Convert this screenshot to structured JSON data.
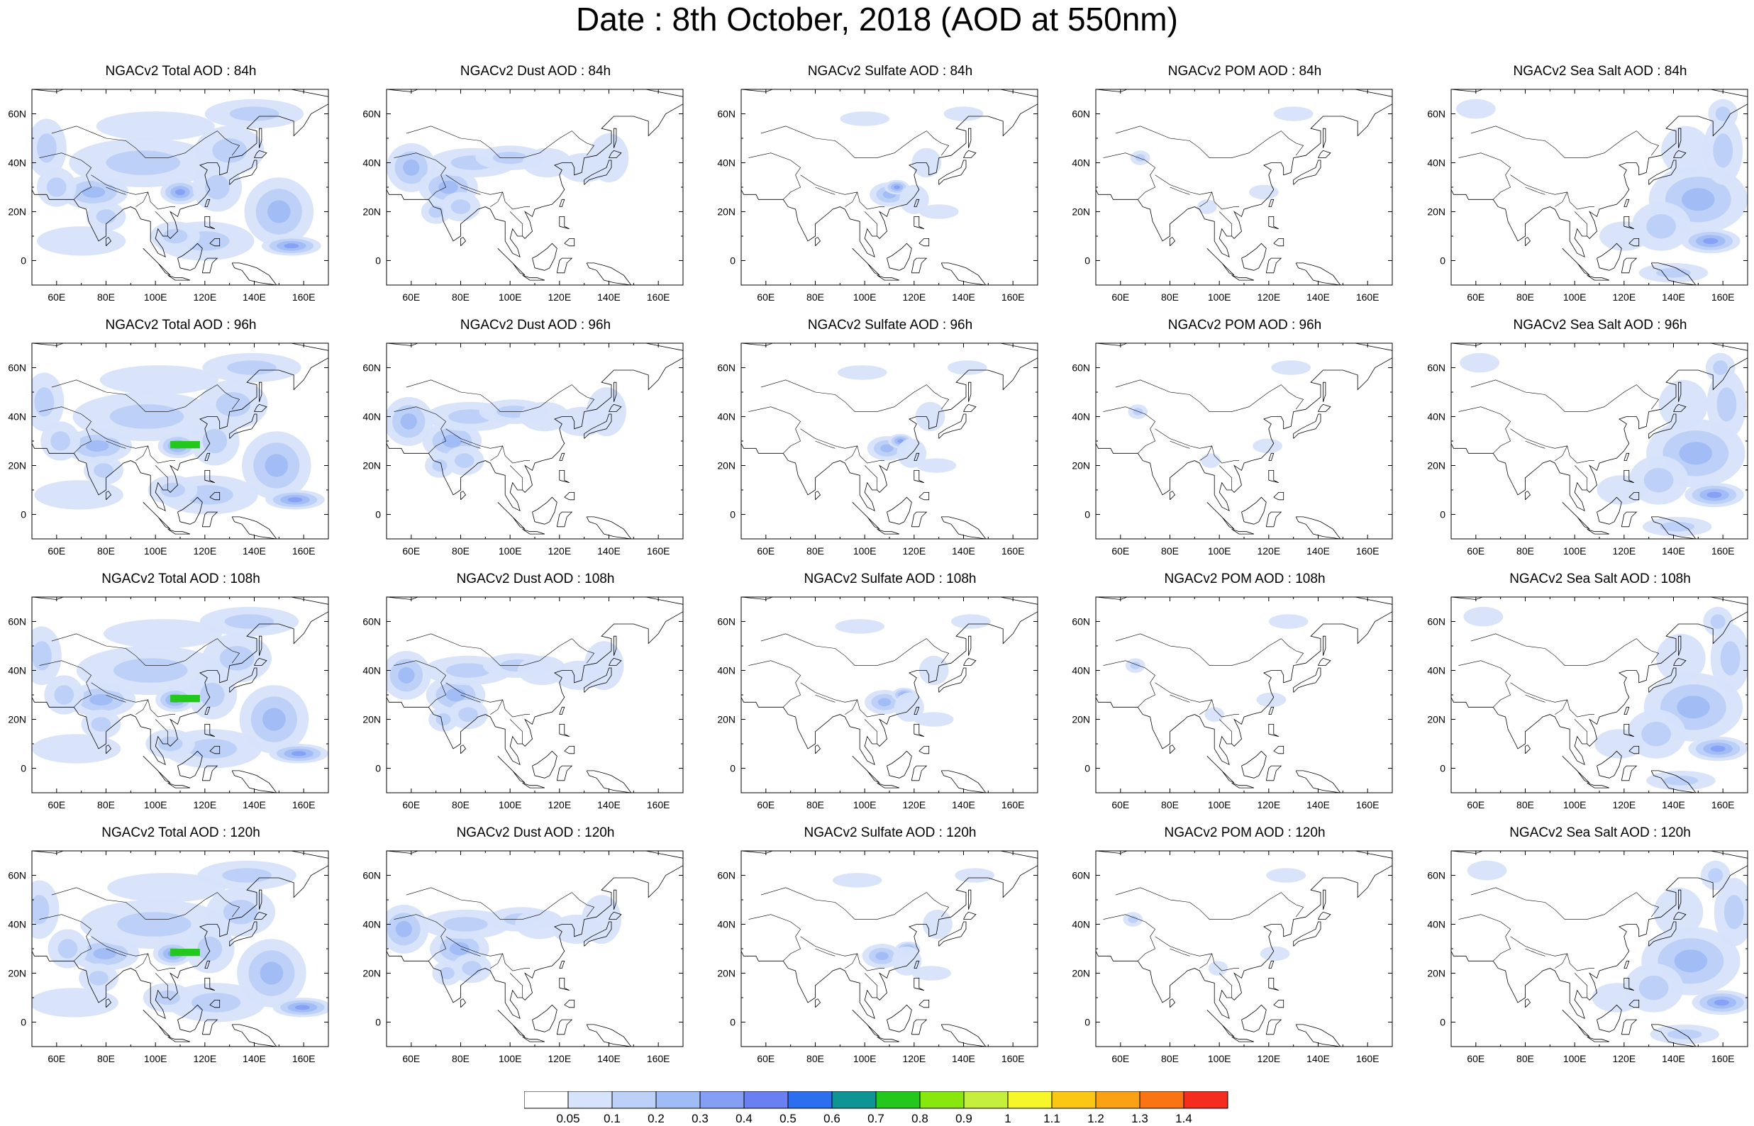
{
  "title": "Date : 8th October, 2018 (AOD at 550nm)",
  "panels": [
    {
      "title": "NGACv2 Total AOD : 84h",
      "species": "total",
      "hour": 84
    },
    {
      "title": "NGACv2 Dust AOD : 84h",
      "species": "dust",
      "hour": 84
    },
    {
      "title": "NGACv2 Sulfate AOD : 84h",
      "species": "sulfate",
      "hour": 84
    },
    {
      "title": "NGACv2 POM AOD : 84h",
      "species": "pom",
      "hour": 84
    },
    {
      "title": "NGACv2 Sea Salt AOD : 84h",
      "species": "seasalt",
      "hour": 84
    },
    {
      "title": "NGACv2 Total AOD : 96h",
      "species": "total",
      "hour": 96
    },
    {
      "title": "NGACv2 Dust AOD : 96h",
      "species": "dust",
      "hour": 96
    },
    {
      "title": "NGACv2 Sulfate AOD : 96h",
      "species": "sulfate",
      "hour": 96
    },
    {
      "title": "NGACv2 POM AOD : 96h",
      "species": "pom",
      "hour": 96
    },
    {
      "title": "NGACv2 Sea Salt AOD : 96h",
      "species": "seasalt",
      "hour": 96
    },
    {
      "title": "NGACv2 Total AOD : 108h",
      "species": "total",
      "hour": 108
    },
    {
      "title": "NGACv2 Dust AOD : 108h",
      "species": "dust",
      "hour": 108
    },
    {
      "title": "NGACv2 Sulfate AOD : 108h",
      "species": "sulfate",
      "hour": 108
    },
    {
      "title": "NGACv2 POM AOD : 108h",
      "species": "pom",
      "hour": 108
    },
    {
      "title": "NGACv2 Sea Salt AOD : 108h",
      "species": "seasalt",
      "hour": 108
    },
    {
      "title": "NGACv2 Total AOD : 120h",
      "species": "total",
      "hour": 120
    },
    {
      "title": "NGACv2 Dust AOD : 120h",
      "species": "dust",
      "hour": 120
    },
    {
      "title": "NGACv2 Sulfate AOD : 120h",
      "species": "sulfate",
      "hour": 120
    },
    {
      "title": "NGACv2 POM AOD : 120h",
      "species": "pom",
      "hour": 120
    },
    {
      "title": "NGACv2 Sea Salt  AOD : 120h",
      "species": "seasalt",
      "hour": 120
    }
  ],
  "map_extent": {
    "lon_min": 50,
    "lon_max": 170,
    "lat_min": -10,
    "lat_max": 70
  },
  "x_ticks": [
    60,
    80,
    100,
    120,
    140,
    160
  ],
  "x_tick_labels": [
    "60E",
    "80E",
    "100E",
    "120E",
    "140E",
    "160E"
  ],
  "y_ticks": [
    0,
    20,
    40,
    60
  ],
  "y_tick_labels": [
    "0",
    "20N",
    "40N",
    "60N"
  ],
  "colorbar": {
    "labels": [
      "0.05",
      "0.1",
      "0.2",
      "0.3",
      "0.4",
      "0.5",
      "0.6",
      "0.7",
      "0.8",
      "0.9",
      "1",
      "1.1",
      "1.2",
      "1.3",
      "1.4"
    ],
    "colors": [
      "#ffffff",
      "#d7e3fb",
      "#bcd0f8",
      "#a0bcf6",
      "#859ff4",
      "#6a7ff1",
      "#2b6ff0",
      "#0e9494",
      "#24c81c",
      "#88e80e",
      "#c6ee3c",
      "#f6f62a",
      "#fac814",
      "#faa214",
      "#fa7414",
      "#f52d1e"
    ]
  }
}
